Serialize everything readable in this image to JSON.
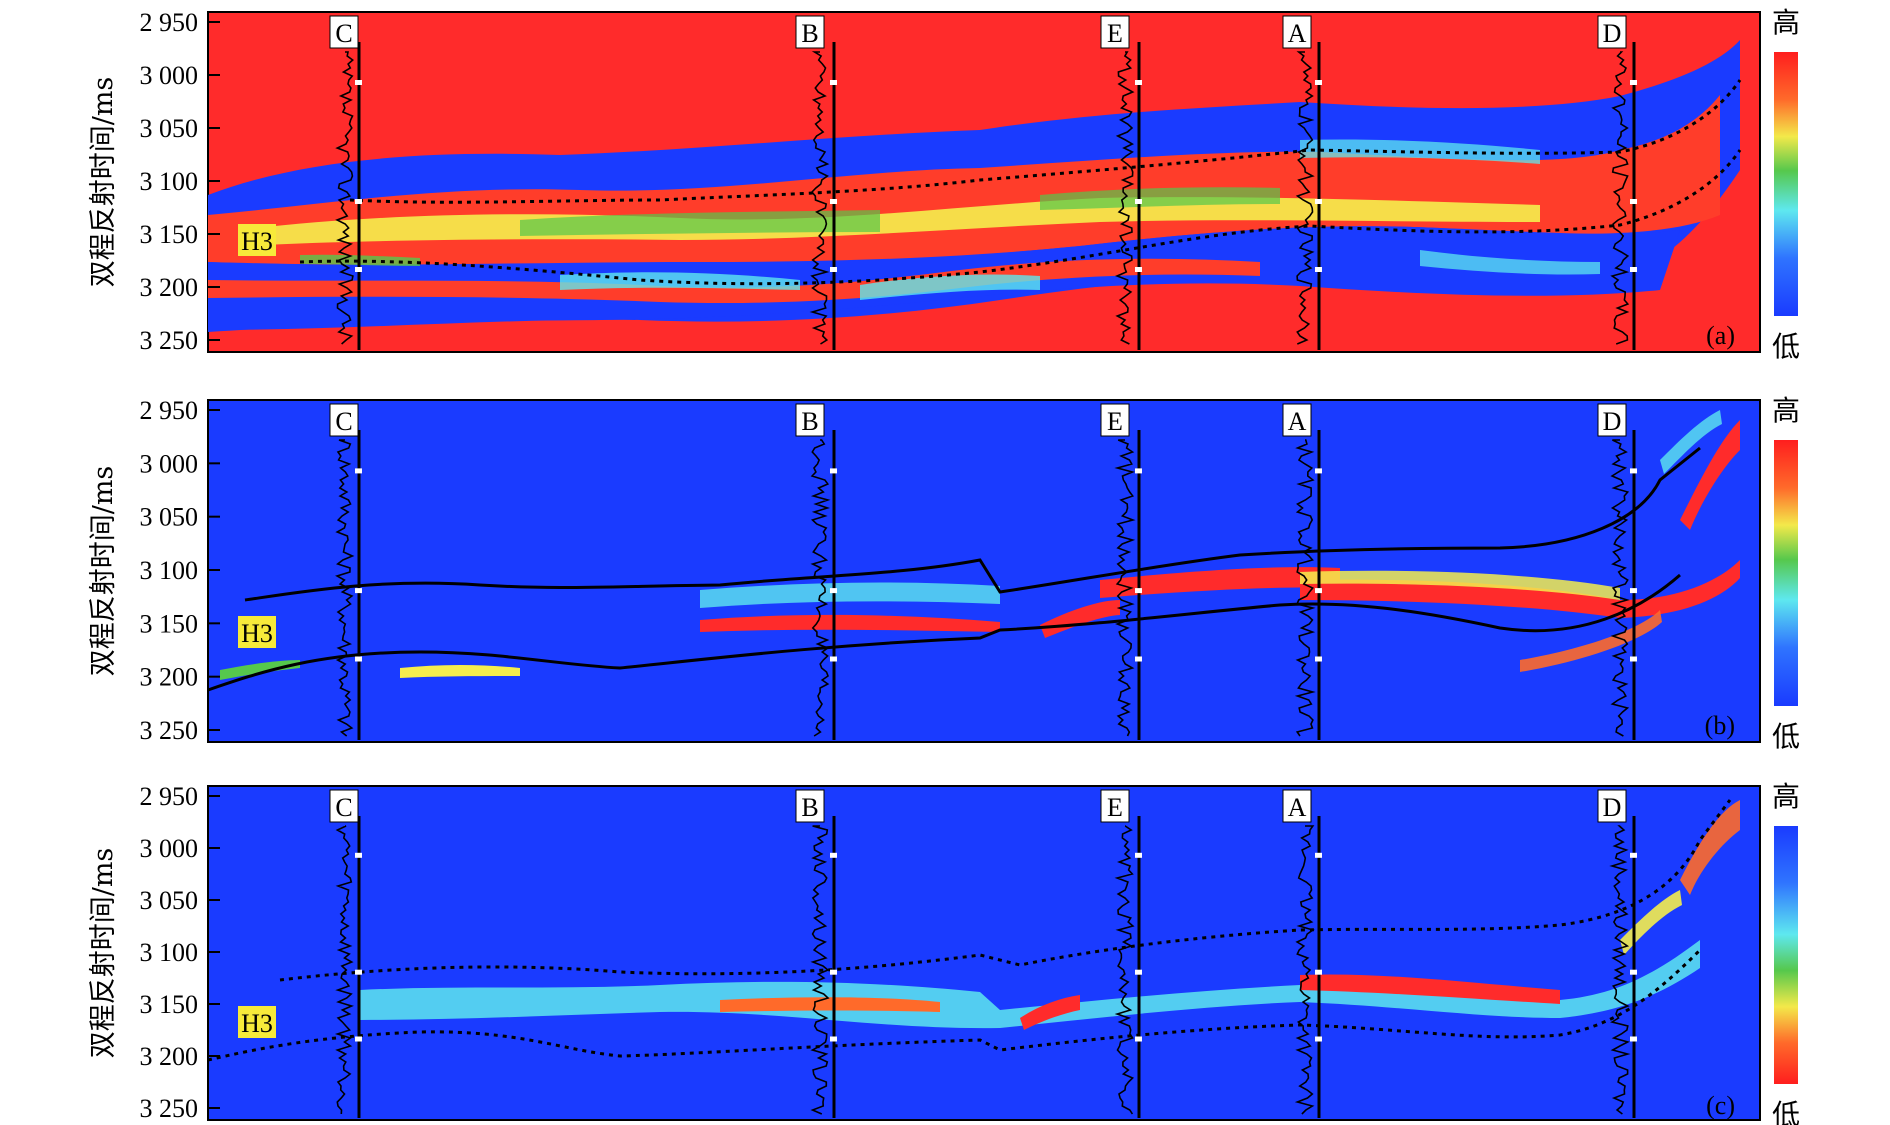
{
  "y_axis_title": "双程反射时间/ms",
  "y_ticks": [
    "2 950",
    "3 000",
    "3 050",
    "3 100",
    "3 150",
    "3 200",
    "3 250"
  ],
  "horizon_label": "H3",
  "wells": [
    "C",
    "B",
    "E",
    "A",
    "D"
  ],
  "panels": [
    {
      "id": "a",
      "label": "(a)",
      "scale_high": "高",
      "scale_low": "低",
      "background": "red"
    },
    {
      "id": "b",
      "label": "(b)",
      "scale_high": "高",
      "scale_low": "低",
      "background": "blue"
    },
    {
      "id": "c",
      "label": "(c)",
      "scale_high": "高",
      "scale_low": "低",
      "background": "blue"
    }
  ],
  "colors": {
    "red": "#ff2b2b",
    "blue": "#1a3bff",
    "cyan": "#5ee8ef",
    "green": "#52c84a",
    "yellow": "#f5ee4d",
    "deep_red": "#e81818",
    "label_yellow": "#f7ea3a"
  }
}
